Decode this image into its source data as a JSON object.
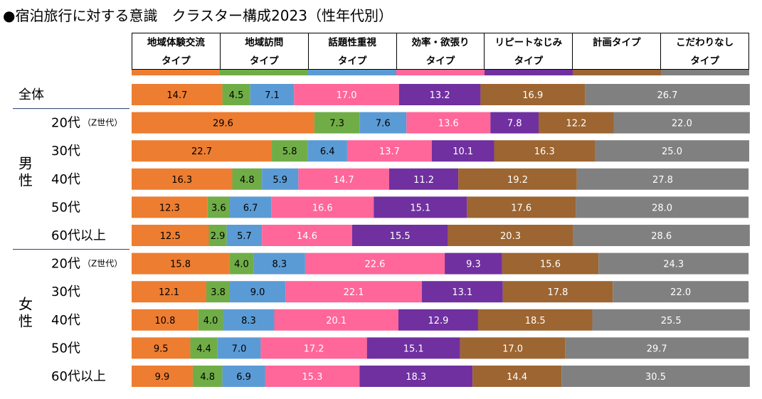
{
  "title": "●宿泊旅行に対する意識　クラスター構成2023（性年代別）",
  "chart_data": {
    "type": "stacked-bar-horizontal",
    "title": "●宿泊旅行に対する意識　クラスター構成2023（性年代別）",
    "xlim": [
      0,
      100
    ],
    "legend_position": "top",
    "series": [
      {
        "name_line1": "地域体験交流",
        "name_line2": "タイプ",
        "color": "#ED7D31",
        "values": [
          14.7,
          29.6,
          22.7,
          16.3,
          12.3,
          12.5,
          15.8,
          12.1,
          10.8,
          9.5,
          9.9
        ]
      },
      {
        "name_line1": "地域訪問",
        "name_line2": "タイプ",
        "color": "#70AD47",
        "values": [
          4.5,
          7.3,
          5.8,
          4.8,
          3.6,
          2.9,
          4.0,
          3.8,
          4.0,
          4.4,
          4.8
        ]
      },
      {
        "name_line1": "話題性重視",
        "name_line2": "タイプ",
        "color": "#5B9BD5",
        "values": [
          7.1,
          7.6,
          6.4,
          5.9,
          6.7,
          5.7,
          8.3,
          9.0,
          8.3,
          7.0,
          6.9
        ]
      },
      {
        "name_line1": "効率・欲張り",
        "name_line2": "タイプ",
        "color": "#FF6699",
        "values": [
          17.0,
          13.6,
          13.7,
          14.7,
          16.6,
          14.6,
          22.6,
          22.1,
          20.1,
          17.2,
          15.3
        ]
      },
      {
        "name_line1": "リピートなじみ",
        "name_line2": "タイプ",
        "color": "#7030A0",
        "values": [
          13.2,
          7.8,
          10.1,
          11.2,
          15.1,
          15.5,
          9.3,
          13.1,
          12.9,
          15.1,
          18.3
        ]
      },
      {
        "name_line1": "計画タイプ",
        "name_line2": "",
        "color": "#9C6531",
        "values": [
          16.9,
          12.2,
          16.3,
          19.2,
          17.6,
          20.3,
          15.6,
          17.8,
          18.5,
          17.0,
          14.4
        ]
      },
      {
        "name_line1": "こだわりなし",
        "name_line2": "タイプ",
        "color": "#808080",
        "values": [
          26.7,
          22.0,
          25.0,
          27.8,
          28.0,
          28.6,
          24.3,
          22.0,
          25.5,
          29.7,
          30.5
        ]
      }
    ],
    "rows": [
      {
        "label": "全体",
        "sub": ""
      },
      {
        "label": "20代",
        "sub": "（Z世代）"
      },
      {
        "label": "30代",
        "sub": ""
      },
      {
        "label": "40代",
        "sub": ""
      },
      {
        "label": "50代",
        "sub": ""
      },
      {
        "label": "60代以上",
        "sub": ""
      },
      {
        "label": "20代",
        "sub": "（Z世代）"
      },
      {
        "label": "30代",
        "sub": ""
      },
      {
        "label": "40代",
        "sub": ""
      },
      {
        "label": "50代",
        "sub": ""
      },
      {
        "label": "60代以上",
        "sub": ""
      }
    ],
    "groups": [
      {
        "chars": [
          "男",
          "性"
        ],
        "first_row": 1,
        "last_row": 5
      },
      {
        "chars": [
          "女",
          "性"
        ],
        "first_row": 6,
        "last_row": 10
      }
    ]
  }
}
